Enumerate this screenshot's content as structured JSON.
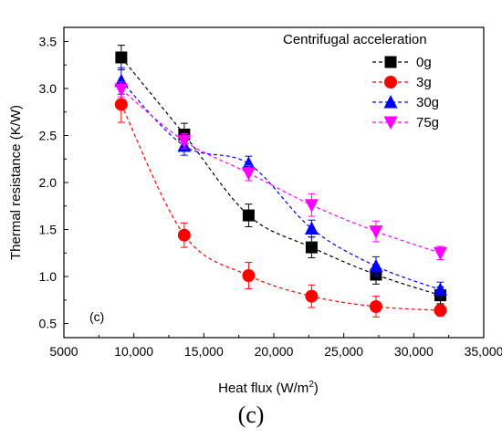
{
  "caption": "(c)",
  "chart_data": {
    "type": "line",
    "panel_label": "(c)",
    "xlabel": "Heat flux (W/m",
    "xlabel_sup": "2",
    "xlabel_end": ")",
    "ylabel": "Thermal resistance (K/W)",
    "xlim": [
      5000,
      35000
    ],
    "ylim": [
      0.35,
      3.65
    ],
    "xticks": [
      5000,
      10000,
      15000,
      20000,
      25000,
      30000,
      35000
    ],
    "xtick_labels": [
      "5000",
      "10,000",
      "15,000",
      "20,000",
      "25,000",
      "30,000",
      "35,000"
    ],
    "yticks": [
      0.5,
      1.0,
      1.5,
      2.0,
      2.5,
      3.0,
      3.5
    ],
    "ytick_labels": [
      "0.5",
      "1.0",
      "1.5",
      "2.0",
      "2.5",
      "3.0",
      "3.5"
    ],
    "legend_title": "Centrifugal acceleration",
    "legend_position": "top-right",
    "grid": false,
    "series": [
      {
        "name": "0g",
        "marker": "square",
        "color": "#000000",
        "x": [
          9100,
          13600,
          18200,
          22700,
          27300,
          31900
        ],
        "y": [
          3.33,
          2.51,
          1.65,
          1.31,
          1.02,
          0.8
        ],
        "err": [
          0.13,
          0.12,
          0.12,
          0.11,
          0.1,
          0.09
        ]
      },
      {
        "name": "3g",
        "marker": "circle",
        "color": "#ff0000",
        "x": [
          9100,
          13600,
          18200,
          22700,
          27300,
          31900
        ],
        "y": [
          2.83,
          1.44,
          1.01,
          0.79,
          0.68,
          0.64
        ],
        "err": [
          0.19,
          0.13,
          0.14,
          0.12,
          0.11,
          0.06
        ]
      },
      {
        "name": "30g",
        "marker": "triangle-up",
        "color": "#0000ff",
        "x": [
          9100,
          13600,
          18200,
          22700,
          27300,
          31900
        ],
        "y": [
          3.08,
          2.39,
          2.2,
          1.51,
          1.11,
          0.86
        ],
        "err": [
          0.14,
          0.1,
          0.08,
          0.09,
          0.1,
          0.08
        ]
      },
      {
        "name": "75g",
        "marker": "triangle-down",
        "color": "#ff00ff",
        "x": [
          9100,
          13600,
          18200,
          22700,
          27300,
          31900
        ],
        "y": [
          2.99,
          2.44,
          2.1,
          1.76,
          1.48,
          1.25
        ],
        "err": [
          0.08,
          0.08,
          0.08,
          0.12,
          0.11,
          0.07
        ]
      }
    ]
  }
}
